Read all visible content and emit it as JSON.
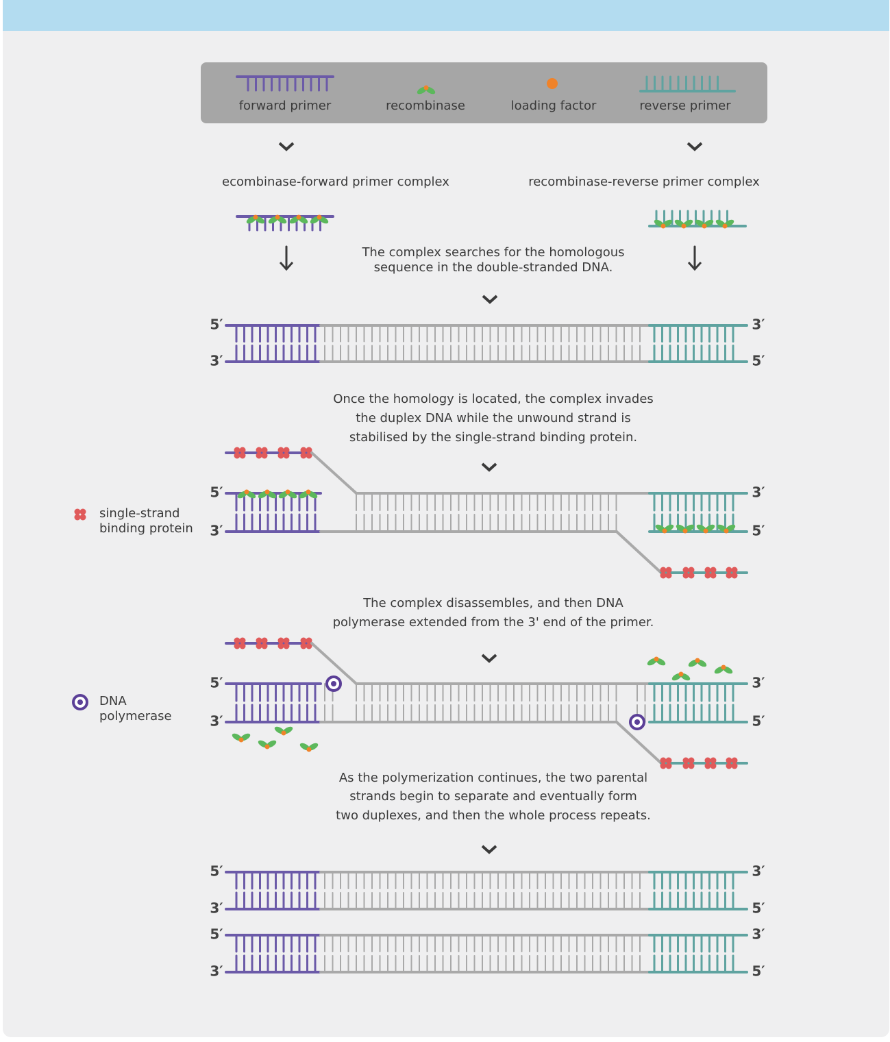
{
  "legend": [
    "forward primer",
    "recombinase",
    "loading factor",
    "reverse primer"
  ],
  "complexes": [
    "ecombinase-forward primer complex",
    "recombinase-reverse primer complex"
  ],
  "steps": [
    [
      "The complex searches for the homologous",
      "sequence in the double-stranded DNA."
    ],
    [
      "Once the homology is located, the complex invades",
      "the duplex DNA while the unwound strand is",
      "stabilised by the single-strand binding protein."
    ],
    [
      "The complex disassembles, and then DNA",
      "polymerase extended from the 3' end of the primer."
    ],
    [
      "As the polymerization continues, the two parental",
      "strands begin to separate and eventually form",
      "two duplexes, and then the whole process repeats."
    ]
  ],
  "side_legend": [
    [
      "single-strand",
      "binding protein"
    ],
    [
      "DNA",
      "polymerase"
    ]
  ],
  "duplex_ends": [
    {
      "left": [
        "5′",
        "3′"
      ],
      "right": [
        "3′",
        "5′"
      ]
    },
    {
      "left": [
        "5′",
        "3′"
      ],
      "right": [
        "3′",
        "5′"
      ]
    },
    {
      "left": [
        "5′",
        "3′"
      ],
      "right": [
        "3′",
        "5′"
      ]
    },
    {
      "left": [
        "5′",
        "3′"
      ],
      "right": [
        "3′",
        "5′"
      ]
    },
    {
      "left": [
        "5′",
        "3′"
      ],
      "right": [
        "3′",
        "5′"
      ]
    }
  ]
}
